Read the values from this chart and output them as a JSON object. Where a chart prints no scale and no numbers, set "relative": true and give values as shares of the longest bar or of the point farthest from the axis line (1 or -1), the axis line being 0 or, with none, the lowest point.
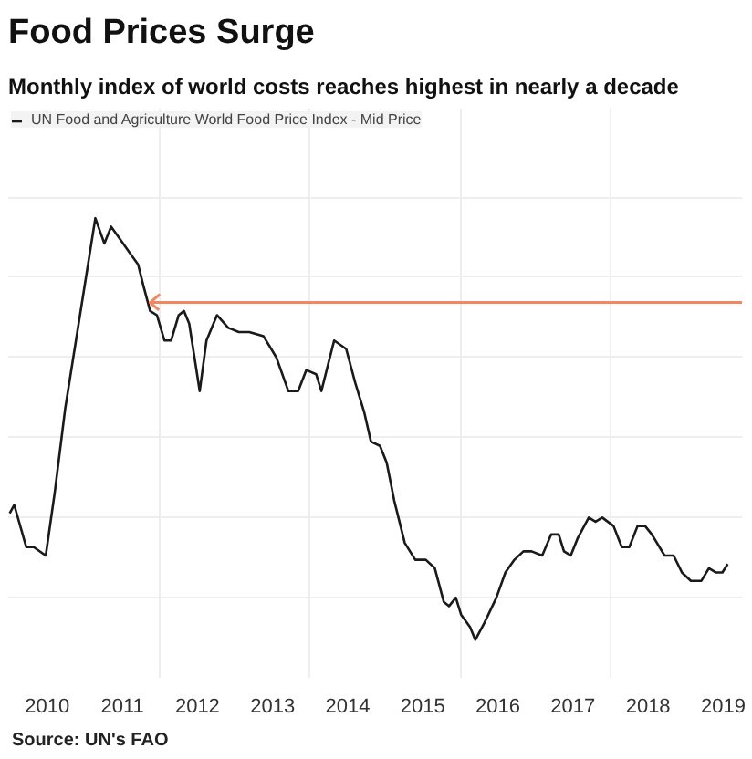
{
  "chart_data": {
    "type": "line",
    "title": "Food Prices Surge",
    "subtitle": "Monthly index of world costs reaches highest in nearly a decade",
    "relative": true,
    "x": [
      2010.0,
      2010.06,
      2010.22,
      2010.32,
      2010.48,
      2010.6,
      2010.74,
      2011.14,
      2011.26,
      2011.35,
      2011.47,
      2011.59,
      2011.71,
      2011.78,
      2011.87,
      2011.96,
      2012.06,
      2012.15,
      2012.25,
      2012.32,
      2012.39,
      2012.53,
      2012.62,
      2012.76,
      2012.91,
      2013.05,
      2013.19,
      2013.38,
      2013.55,
      2013.71,
      2013.84,
      2013.95,
      2014.08,
      2014.15,
      2014.32,
      2014.48,
      2014.6,
      2014.72,
      2014.81,
      2014.93,
      2015.02,
      2015.12,
      2015.26,
      2015.4,
      2015.54,
      2015.66,
      2015.78,
      2015.85,
      2015.94,
      2016.01,
      2016.13,
      2016.2,
      2016.32,
      2016.48,
      2016.6,
      2016.72,
      2016.84,
      2016.95,
      2017.09,
      2017.21,
      2017.31,
      2017.38,
      2017.47,
      2017.56,
      2017.71,
      2017.8,
      2017.89,
      2018.04,
      2018.15,
      2018.25,
      2018.36,
      2018.46,
      2018.55,
      2018.72,
      2018.84,
      2018.95,
      2019.07,
      2019.21,
      2019.31,
      2019.4,
      2019.49,
      2019.56
    ],
    "series": [
      {
        "name": "UN Food and Agriculture World Food Price Index - Mid Price",
        "color": "#1a1a1a",
        "values": [
          0.3,
          0.32,
          0.22,
          0.22,
          0.2,
          0.35,
          0.55,
          1.0,
          0.94,
          0.98,
          0.95,
          0.92,
          0.89,
          0.84,
          0.78,
          0.77,
          0.71,
          0.71,
          0.77,
          0.78,
          0.75,
          0.59,
          0.71,
          0.77,
          0.74,
          0.73,
          0.73,
          0.72,
          0.67,
          0.59,
          0.59,
          0.64,
          0.63,
          0.59,
          0.71,
          0.69,
          0.61,
          0.54,
          0.47,
          0.46,
          0.42,
          0.33,
          0.23,
          0.19,
          0.19,
          0.17,
          0.09,
          0.08,
          0.1,
          0.06,
          0.03,
          0.0,
          0.04,
          0.1,
          0.16,
          0.19,
          0.21,
          0.21,
          0.2,
          0.25,
          0.25,
          0.21,
          0.2,
          0.24,
          0.29,
          0.28,
          0.29,
          0.27,
          0.22,
          0.22,
          0.27,
          0.27,
          0.25,
          0.2,
          0.2,
          0.16,
          0.14,
          0.14,
          0.17,
          0.16,
          0.16,
          0.18
        ]
      }
    ],
    "xlim": [
      2009.98,
      2019.75
    ],
    "xticks": [
      {
        "value": 2010.5,
        "label": "2010"
      },
      {
        "value": 2011.5,
        "label": "2011"
      },
      {
        "value": 2012,
        "label": null
      },
      {
        "value": 2012.5,
        "label": "2012"
      },
      {
        "value": 2013.5,
        "label": "2013"
      },
      {
        "value": 2014,
        "label": null
      },
      {
        "value": 2014.5,
        "label": "2014"
      },
      {
        "value": 2015.5,
        "label": "2015"
      },
      {
        "value": 2016,
        "label": null
      },
      {
        "value": 2016.5,
        "label": "2016"
      },
      {
        "value": 2017.5,
        "label": "2017"
      },
      {
        "value": 2018,
        "label": null
      },
      {
        "value": 2018.5,
        "label": "2018"
      },
      {
        "value": 2019.5,
        "label": "2019"
      }
    ],
    "ref_lines": [
      {
        "axis": "y",
        "value": 0.8,
        "label": null,
        "color": "#f4875f"
      }
    ],
    "grid": true,
    "legend": "top left",
    "annotations": [
      "Source: UN's FAO"
    ]
  }
}
